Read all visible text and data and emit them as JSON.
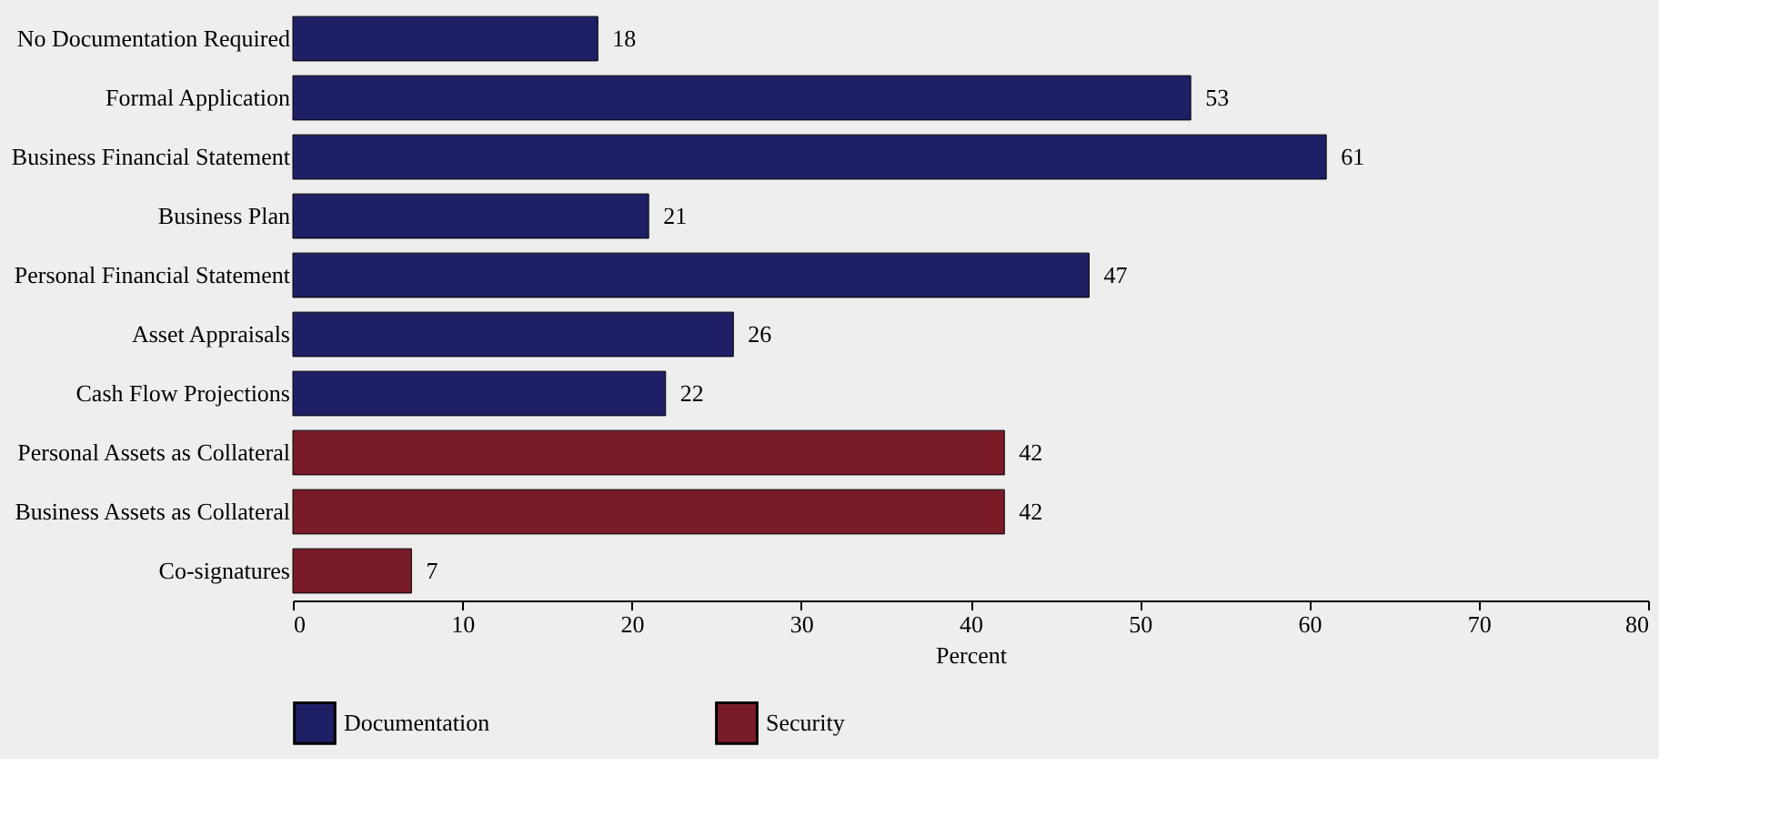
{
  "chart_data": {
    "type": "bar",
    "orientation": "horizontal",
    "categories": [
      "No Documentation Required",
      "Formal Application",
      "Business Financial Statement",
      "Business Plan",
      "Personal Financial Statement",
      "Asset Appraisals",
      "Cash Flow Projections",
      "Personal Assets as Collateral",
      "Business Assets as Collateral",
      "Co-signatures"
    ],
    "series": [
      {
        "name": "Documentation",
        "color": "#1f1f66",
        "values": [
          18,
          53,
          61,
          21,
          47,
          26,
          22,
          null,
          null,
          null
        ]
      },
      {
        "name": "Security",
        "color": "#7a1c28",
        "values": [
          null,
          null,
          null,
          null,
          null,
          null,
          null,
          42,
          42,
          7
        ]
      }
    ],
    "xlabel": "Percent",
    "xlim": [
      0,
      80
    ],
    "xticks": [
      0,
      10,
      20,
      30,
      40,
      50,
      60,
      70,
      80
    ],
    "data_labels": true,
    "legend": "bottom",
    "grid": false
  }
}
